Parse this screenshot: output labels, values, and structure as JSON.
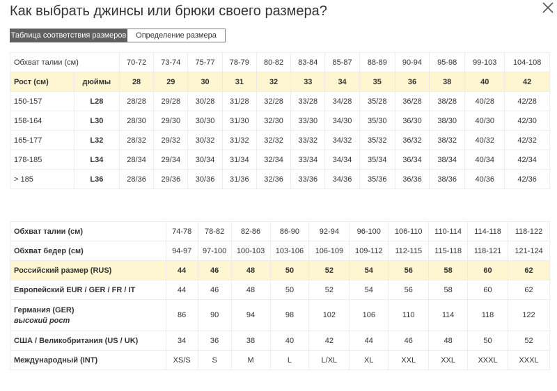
{
  "dialog": {
    "title": "Как выбрать джинсы или брюки своего размера?"
  },
  "tabs": [
    {
      "label": "Таблица соответствия размеров",
      "active": true
    },
    {
      "label": "Определение размера",
      "active": false
    }
  ],
  "table1": {
    "waist_label": "Обхват талии (см)",
    "waist": [
      "70-72",
      "73-74",
      "75-77",
      "78-79",
      "80-82",
      "83-84",
      "85-87",
      "88-89",
      "90-94",
      "95-98",
      "99-103",
      "104-108"
    ],
    "height_label": "Рост (см)",
    "inches_label": "дюймы",
    "inches": [
      "28",
      "29",
      "30",
      "31",
      "32",
      "33",
      "34",
      "35",
      "36",
      "38",
      "40",
      "42"
    ],
    "rows": [
      {
        "height": "150-157",
        "length": "L28",
        "values": [
          "28/28",
          "29/28",
          "30/28",
          "31/28",
          "32/28",
          "33/28",
          "34/28",
          "35/28",
          "36/28",
          "38/28",
          "40/28",
          "42/28"
        ]
      },
      {
        "height": "158-164",
        "length": "L30",
        "values": [
          "28/30",
          "29/30",
          "30/30",
          "31/30",
          "32/30",
          "33/30",
          "34/30",
          "35/30",
          "36/30",
          "38/30",
          "40/30",
          "42/30"
        ]
      },
      {
        "height": "165-177",
        "length": "L32",
        "values": [
          "28/32",
          "29/32",
          "30/32",
          "31/32",
          "32/32",
          "33/32",
          "34/32",
          "35/32",
          "36/32",
          "38/32",
          "40/32",
          "42/32"
        ]
      },
      {
        "height": "178-185",
        "length": "L34",
        "values": [
          "28/34",
          "29/34",
          "30/34",
          "31/34",
          "32/34",
          "33/34",
          "34/34",
          "35/34",
          "36/34",
          "38/34",
          "40/34",
          "42/34"
        ]
      },
      {
        "height": "> 185",
        "length": "L36",
        "values": [
          "28/36",
          "29/36",
          "30/36",
          "31/36",
          "32/36",
          "33/36",
          "34/36",
          "35/36",
          "36/36",
          "38/36",
          "40/36",
          "42/36"
        ]
      }
    ]
  },
  "table2": {
    "rows": [
      {
        "label": "Обхват талии (см)",
        "values": [
          "74-78",
          "78-82",
          "82-86",
          "86-90",
          "92-94",
          "96-100",
          "106-110",
          "110-114",
          "114-118",
          "118-122"
        ]
      },
      {
        "label": "Обхват бедер (см)",
        "values": [
          "94-97",
          "97-100",
          "100-103",
          "103-106",
          "106-109",
          "109-112",
          "112-115",
          "115-118",
          "118-121",
          "121-124"
        ]
      },
      {
        "label": "Российский размер (RUS)",
        "values": [
          "44",
          "46",
          "48",
          "50",
          "52",
          "54",
          "56",
          "58",
          "60",
          "62"
        ]
      },
      {
        "label": "Европейский EUR / GER / FR / IT",
        "values": [
          "44",
          "46",
          "48",
          "50",
          "52",
          "54",
          "56",
          "58",
          "60",
          "62"
        ]
      },
      {
        "label": "Германия (GER)",
        "sublabel": "высокий рост",
        "values": [
          "86",
          "90",
          "94",
          "98",
          "102",
          "106",
          "110",
          "114",
          "118",
          "122"
        ]
      },
      {
        "label": "США / Великобритания (US / UK)",
        "values": [
          "34",
          "36",
          "38",
          "40",
          "42",
          "44",
          "46",
          "48",
          "50",
          "52"
        ]
      },
      {
        "label": "Международный (INT)",
        "values": [
          "XS/S",
          "S",
          "M",
          "L",
          "L/XL",
          "XL",
          "XXL",
          "XXL",
          "XXXL",
          "XXXL"
        ]
      }
    ]
  }
}
